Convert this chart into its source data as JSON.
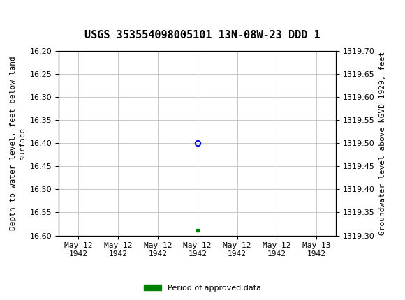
{
  "title": "USGS 353554098005101 13N-08W-23 DDD 1",
  "ylabel_left": "Depth to water level, feet below land\nsurface",
  "ylabel_right": "Groundwater level above NGVD 1929, feet",
  "ylim_left_top": 16.2,
  "ylim_left_bottom": 16.6,
  "ylim_right_top": 1319.7,
  "ylim_right_bottom": 1319.3,
  "yticks_left": [
    16.2,
    16.25,
    16.3,
    16.35,
    16.4,
    16.45,
    16.5,
    16.55,
    16.6
  ],
  "yticks_right": [
    1319.7,
    1319.65,
    1319.6,
    1319.55,
    1319.5,
    1319.45,
    1319.4,
    1319.35,
    1319.3
  ],
  "data_point_x": 3.0,
  "data_point_y": 16.4,
  "green_marker_x": 3.0,
  "green_marker_y": 16.588,
  "xtick_labels": [
    "May 12\n1942",
    "May 12\n1942",
    "May 12\n1942",
    "May 12\n1942",
    "May 12\n1942",
    "May 12\n1942",
    "May 13\n1942"
  ],
  "xtick_positions": [
    0,
    1,
    2,
    3,
    4,
    5,
    6
  ],
  "xlim": [
    -0.5,
    6.5
  ],
  "bg_color": "#ffffff",
  "header_color": "#1a6b3c",
  "grid_color": "#c8c8c8",
  "circle_color": "#0000cc",
  "green_color": "#008000",
  "legend_label": "Period of approved data",
  "title_fontsize": 11,
  "axis_label_fontsize": 8,
  "tick_fontsize": 8
}
